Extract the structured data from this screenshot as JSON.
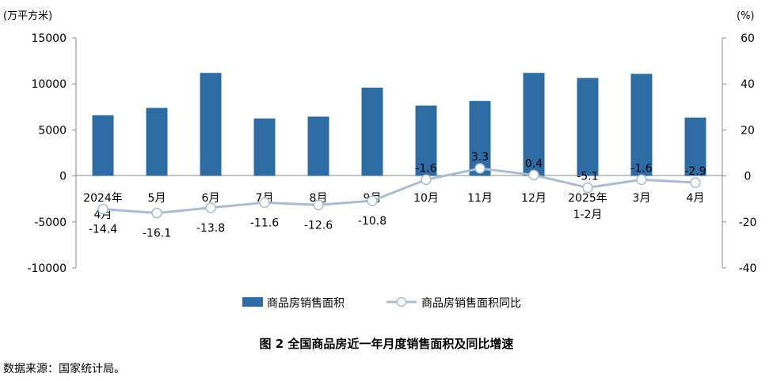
{
  "chart_data": {
    "type": "bar",
    "categories": [
      [
        "2024年",
        "4月"
      ],
      [
        "5月"
      ],
      [
        "6月"
      ],
      [
        "7月"
      ],
      [
        "8月"
      ],
      [
        "9月"
      ],
      [
        "10月"
      ],
      [
        "11月"
      ],
      [
        "12月"
      ],
      [
        "2025年",
        "1-2月"
      ],
      [
        "3月"
      ],
      [
        "4月"
      ]
    ],
    "series": [
      {
        "name": "商品房销售面积",
        "type": "bar",
        "axis": "left",
        "color": "#2e6ca4",
        "values": [
          6600,
          7400,
          11200,
          6250,
          6450,
          9600,
          7650,
          8150,
          11200,
          10650,
          11100,
          6350
        ]
      },
      {
        "name": "商品房销售面积同比",
        "type": "line",
        "axis": "right",
        "color": "#a9bcd6",
        "values": [
          -14.4,
          -16.1,
          -13.8,
          -11.6,
          -12.6,
          -10.8,
          -1.6,
          3.3,
          0.4,
          -5.1,
          -1.6,
          -2.9
        ],
        "labels": [
          "-14.4",
          "-16.1",
          "-13.8",
          "-11.6",
          "-12.6",
          "-10.8",
          "-1.6",
          "3.3",
          "0.4",
          "-5.1",
          "-1.6",
          "-2.9"
        ]
      }
    ],
    "left_axis": {
      "unit": "(万平方米)",
      "ylim": [
        -10000,
        15000
      ],
      "ticks": [
        15000,
        10000,
        5000,
        0,
        -5000,
        -10000
      ],
      "tick_labels": [
        "15000",
        "10000",
        "5000",
        "0",
        "-5000",
        "-10000"
      ]
    },
    "right_axis": {
      "unit": "(%)",
      "ylim": [
        -40,
        60
      ],
      "ticks": [
        60,
        40,
        20,
        0,
        -20,
        -40
      ],
      "tick_labels": [
        "60",
        "40",
        "20",
        "0",
        "-20",
        "-40"
      ]
    },
    "grid": false,
    "legend_position": "bottom"
  },
  "caption": "图 2 全国商品房近一年月度销售面积及同比增速",
  "source": "数据来源：国家统计局。"
}
